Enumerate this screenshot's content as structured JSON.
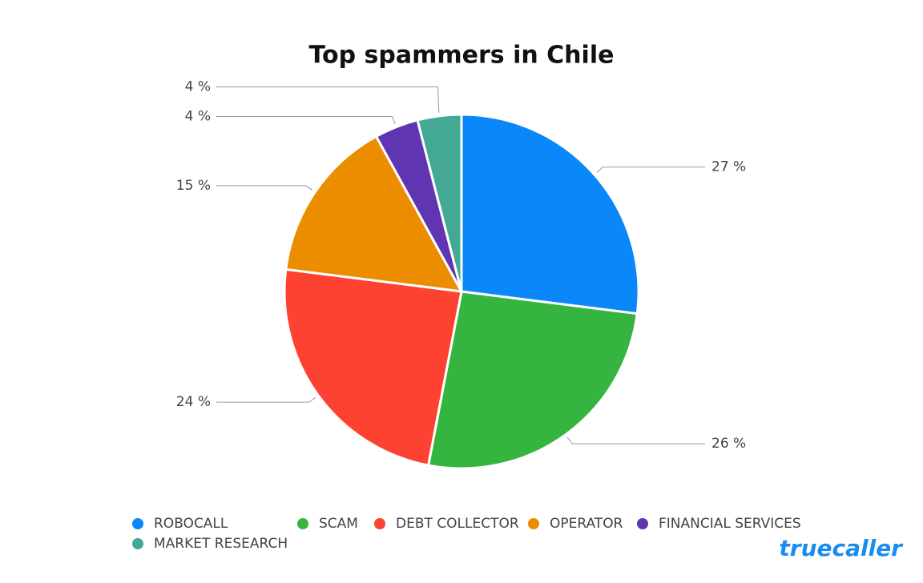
{
  "chart_data": {
    "type": "pie",
    "title": "Top spammers in Chile",
    "categories": [
      "ROBOCALL",
      "SCAM",
      "DEBT COLLECTOR",
      "OPERATOR",
      "FINANCIAL SERVICES",
      "MARKET RESEARCH"
    ],
    "values": [
      27,
      26,
      24,
      15,
      4,
      4
    ],
    "value_labels": [
      "27 %",
      "26 %",
      "24 %",
      "15 %",
      "4 %",
      "4 %"
    ],
    "colors": [
      "#0a87f8",
      "#35b540",
      "#fd4232",
      "#ec8d00",
      "#5f35b2",
      "#44a994"
    ],
    "legend": "bottom"
  },
  "brand": "truecaller"
}
